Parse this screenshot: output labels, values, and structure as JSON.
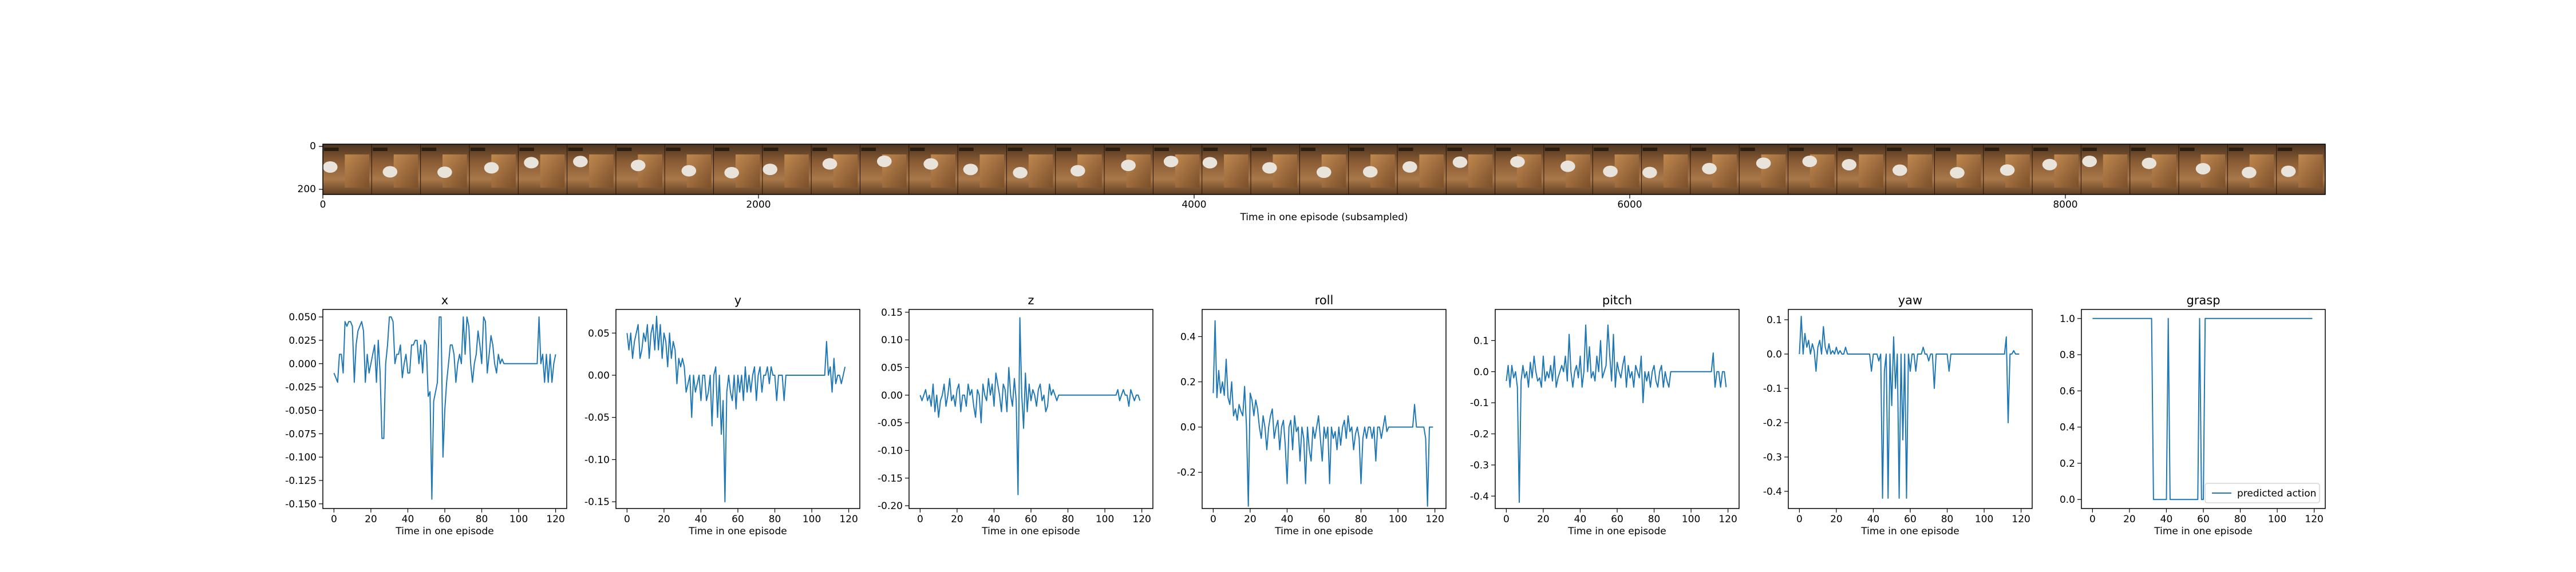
{
  "figure": {
    "strip": {
      "xlabel": "Time in one episode (subsampled)",
      "xticks": [
        "0",
        "2000",
        "4000",
        "6000",
        "8000"
      ],
      "yticks": [
        "0",
        "200"
      ],
      "frames": 41
    },
    "panels_xlabel": "Time in one episode",
    "legend_label": "predicted action",
    "series_color": "#1f77b4"
  },
  "chart_data": [
    {
      "type": "line",
      "title": "x",
      "xlabel": "Time in one episode",
      "xlim": [
        -6,
        126
      ],
      "ylim": [
        -0.155,
        0.058
      ],
      "xticks": [
        0,
        20,
        40,
        60,
        80,
        100,
        120
      ],
      "yticks": [
        0.05,
        0.025,
        0.0,
        -0.025,
        -0.05,
        -0.075,
        -0.1,
        -0.125,
        -0.15
      ],
      "ytick_labels": [
        "0.050",
        "0.025",
        "0.000",
        "-0.025",
        "-0.050",
        "-0.075",
        "-0.100",
        "-0.125",
        "-0.150"
      ],
      "y": [
        -0.01,
        -0.015,
        -0.02,
        0.01,
        0.01,
        -0.01,
        0.045,
        0.04,
        0.045,
        0.045,
        0.04,
        -0.02,
        0.02,
        0.035,
        0.04,
        0.045,
        0.035,
        -0.02,
        0.01,
        -0.01,
        0.0,
        0.01,
        0.02,
        -0.02,
        0.025,
        -0.01,
        -0.08,
        -0.08,
        0.0,
        0.02,
        0.05,
        0.05,
        0.045,
        0.0,
        0.01,
        0.01,
        0.02,
        -0.015,
        0.0,
        0.01,
        -0.01,
        -0.01,
        0.02,
        0.02,
        0.025,
        0.025,
        0.0,
        0.02,
        -0.01,
        0.025,
        0.02,
        -0.035,
        -0.03,
        -0.145,
        -0.04,
        -0.03,
        -0.02,
        0.05,
        0.05,
        -0.1,
        -0.05,
        -0.02,
        0.0,
        0.02,
        0.02,
        0.01,
        -0.02,
        0.0,
        0.01,
        0.0,
        0.05,
        0.01,
        0.05,
        0.04,
        0.0,
        -0.02,
        0.0,
        0.01,
        0.035,
        0.02,
        0.0,
        0.05,
        0.045,
        -0.01,
        0.01,
        0.03,
        0.02,
        0.0,
        -0.01,
        0.01,
        0.0,
        0.005,
        0.0,
        0.0,
        0.0,
        0.0,
        0.0,
        0.0,
        0.0,
        0.0,
        0.0,
        0.0,
        0.0,
        0.0,
        0.0,
        0.0,
        0.0,
        0.0,
        0.0,
        0.0,
        0.0,
        0.05,
        0.0,
        0.01,
        -0.02,
        0.01,
        -0.02,
        0.01,
        -0.02,
        0.0,
        0.01
      ]
    },
    {
      "type": "line",
      "title": "y",
      "xlabel": "Time in one episode",
      "xlim": [
        -6,
        126
      ],
      "ylim": [
        -0.158,
        0.078
      ],
      "xticks": [
        0,
        20,
        40,
        60,
        80,
        100,
        120
      ],
      "yticks": [
        0.05,
        0.0,
        -0.05,
        -0.1,
        -0.15
      ],
      "ytick_labels": [
        "0.05",
        "0.00",
        "-0.05",
        "-0.10",
        "-0.15"
      ],
      "y": [
        0.05,
        0.03,
        0.05,
        0.02,
        0.04,
        0.05,
        0.06,
        0.02,
        0.03,
        0.05,
        0.04,
        0.06,
        0.02,
        0.05,
        0.06,
        0.03,
        0.07,
        0.03,
        0.06,
        0.02,
        0.05,
        0.04,
        0.01,
        0.05,
        0.02,
        0.04,
        0.03,
        -0.01,
        0.02,
        0.01,
        0.02,
        0.01,
        -0.02,
        -0.01,
        0.0,
        -0.05,
        0.0,
        -0.02,
        -0.01,
        0.0,
        -0.03,
        0.0,
        0.0,
        -0.03,
        -0.02,
        0.0,
        -0.06,
        0.0,
        0.01,
        -0.05,
        0.0,
        -0.07,
        -0.03,
        -0.15,
        -0.02,
        0.0,
        -0.02,
        -0.03,
        0.0,
        -0.04,
        0.0,
        -0.02,
        0.0,
        -0.03,
        0.01,
        -0.02,
        0.0,
        -0.02,
        0.0,
        0.01,
        -0.03,
        0.0,
        0.01,
        -0.02,
        0.0,
        0.0,
        0.01,
        -0.01,
        0.01,
        0.0,
        0.0,
        -0.03,
        0.0,
        0.0,
        0.0,
        -0.03,
        0.0,
        0.0,
        0.0,
        0.0,
        0.0,
        0.0,
        0.0,
        0.0,
        0.0,
        0.0,
        0.0,
        0.0,
        0.0,
        0.0,
        0.0,
        0.0,
        0.0,
        0.0,
        0.0,
        0.0,
        0.0,
        0.0,
        0.04,
        0.0,
        0.01,
        -0.02,
        0.02,
        -0.01,
        0.0,
        0.0,
        -0.01,
        0.0,
        0.01
      ]
    },
    {
      "type": "line",
      "title": "z",
      "xlabel": "Time in one episode",
      "xlim": [
        -6,
        126
      ],
      "ylim": [
        -0.205,
        0.155
      ],
      "xticks": [
        0,
        20,
        40,
        60,
        80,
        100,
        120
      ],
      "yticks": [
        0.15,
        0.1,
        0.05,
        0.0,
        -0.05,
        -0.1,
        -0.15,
        -0.2
      ],
      "ytick_labels": [
        "0.15",
        "0.10",
        "0.05",
        "0.00",
        "-0.05",
        "-0.10",
        "-0.15",
        "-0.20"
      ],
      "y": [
        0.0,
        -0.01,
        0.0,
        0.01,
        -0.01,
        0.0,
        -0.02,
        0.02,
        -0.03,
        0.0,
        -0.04,
        -0.01,
        0.0,
        0.02,
        -0.02,
        0.0,
        0.03,
        -0.01,
        0.0,
        -0.02,
        0.01,
        0.02,
        -0.03,
        0.0,
        0.0,
        -0.02,
        0.02,
        0.0,
        0.01,
        -0.02,
        -0.04,
        0.01,
        0.0,
        -0.05,
        0.02,
        0.0,
        -0.01,
        0.03,
        0.0,
        0.02,
        -0.02,
        0.04,
        0.02,
        0.0,
        -0.03,
        0.02,
        0.01,
        -0.03,
        0.05,
        0.0,
        -0.02,
        0.03,
        -0.01,
        -0.18,
        0.14,
        0.0,
        -0.06,
        0.04,
        -0.03,
        0.02,
        -0.01,
        0.01,
        0.0,
        -0.02,
        0.01,
        0.02,
        -0.01,
        0.0,
        -0.03,
        -0.02,
        0.02,
        0.0,
        0.01,
        0.0,
        -0.01,
        0.0,
        0.0,
        0.0,
        0.0,
        0.0,
        0.0,
        0.0,
        0.0,
        0.0,
        0.0,
        0.0,
        0.0,
        0.0,
        0.0,
        0.0,
        0.0,
        0.0,
        0.0,
        0.0,
        0.0,
        0.0,
        0.0,
        0.0,
        0.0,
        0.0,
        0.0,
        0.0,
        0.0,
        0.0,
        0.0,
        0.0,
        0.0,
        0.01,
        -0.01,
        0.0,
        0.01,
        0.0,
        0.0,
        -0.02,
        0.01,
        0.0,
        -0.01,
        0.0,
        0.0,
        -0.01
      ]
    },
    {
      "type": "line",
      "title": "roll",
      "xlabel": "Time in one episode",
      "xlim": [
        -6,
        126
      ],
      "ylim": [
        -0.36,
        0.52
      ],
      "xticks": [
        0,
        20,
        40,
        60,
        80,
        100,
        120
      ],
      "yticks": [
        0.4,
        0.2,
        0.0,
        -0.2
      ],
      "ytick_labels": [
        "0.4",
        "0.2",
        "0.0",
        "-0.2"
      ],
      "y": [
        0.15,
        0.47,
        0.13,
        0.25,
        0.15,
        0.2,
        0.14,
        0.3,
        0.13,
        0.1,
        0.2,
        0.05,
        0.08,
        0.03,
        0.1,
        0.07,
        0.05,
        0.18,
        0.0,
        -0.35,
        0.15,
        0.12,
        0.05,
        0.12,
        0.08,
        0.0,
        -0.05,
        0.05,
        0.0,
        -0.1,
        0.0,
        0.05,
        0.08,
        -0.05,
        0.0,
        0.03,
        -0.1,
        0.0,
        0.03,
        -0.08,
        -0.25,
        0.0,
        0.03,
        -0.1,
        0.05,
        -0.02,
        0.0,
        -0.15,
        0.0,
        -0.05,
        -0.25,
        0.0,
        -0.1,
        -0.15,
        0.0,
        -0.05,
        0.0,
        0.05,
        -0.05,
        -0.15,
        0.0,
        -0.05,
        0.0,
        -0.25,
        0.0,
        -0.05,
        -0.02,
        -0.1,
        0.0,
        -0.08,
        0.0,
        0.03,
        -0.05,
        0.05,
        -0.02,
        0.0,
        -0.1,
        -0.03,
        0.0,
        -0.05,
        -0.25,
        -0.05,
        0.0,
        -0.05,
        0.0,
        0.0,
        -0.05,
        0.0,
        -0.15,
        0.0,
        0.0,
        -0.05,
        0.0,
        0.05,
        -0.02,
        0.0,
        0.0,
        0.0,
        0.0,
        0.0,
        0.0,
        0.0,
        0.0,
        0.0,
        0.0,
        0.0,
        0.0,
        0.0,
        0.0,
        0.1,
        0.0,
        0.0,
        0.0,
        0.0,
        0.0,
        -0.05,
        -0.35,
        0.0,
        0.0,
        0.0
      ]
    },
    {
      "type": "line",
      "title": "pitch",
      "xlabel": "Time in one episode",
      "xlim": [
        -6,
        126
      ],
      "ylim": [
        -0.44,
        0.2
      ],
      "xticks": [
        0,
        20,
        40,
        60,
        80,
        100,
        120
      ],
      "yticks": [
        0.1,
        0.0,
        -0.1,
        -0.2,
        -0.3,
        -0.4
      ],
      "ytick_labels": [
        "0.1",
        "0.0",
        "-0.1",
        "-0.2",
        "-0.3",
        "-0.4"
      ],
      "y": [
        -0.03,
        0.02,
        -0.05,
        0.02,
        -0.02,
        0.0,
        -0.05,
        -0.42,
        -0.03,
        0.02,
        -0.02,
        0.0,
        -0.05,
        0.03,
        -0.02,
        0.05,
        0.0,
        -0.03,
        -0.02,
        -0.05,
        0.05,
        -0.03,
        0.0,
        -0.02,
        0.02,
        -0.03,
        0.05,
        -0.05,
        -0.02,
        0.0,
        0.02,
        0.0,
        0.05,
        -0.03,
        0.12,
        0.0,
        -0.05,
        0.0,
        0.02,
        -0.02,
        0.05,
        -0.05,
        0.0,
        0.15,
        0.0,
        0.08,
        -0.02,
        0.0,
        -0.03,
        0.05,
        0.0,
        0.1,
        -0.02,
        0.0,
        0.02,
        0.15,
        0.05,
        -0.03,
        0.12,
        -0.05,
        0.03,
        0.0,
        -0.02,
        0.02,
        0.05,
        -0.05,
        0.02,
        -0.02,
        0.0,
        -0.05,
        0.02,
        0.0,
        -0.02,
        0.05,
        -0.1,
        0.0,
        -0.03,
        0.0,
        -0.05,
        0.0,
        0.02,
        -0.03,
        -0.05,
        0.0,
        0.02,
        -0.05,
        0.0,
        -0.03,
        -0.05,
        0.0,
        0.0,
        0.0,
        0.0,
        0.0,
        0.0,
        0.0,
        0.0,
        0.0,
        0.0,
        0.0,
        0.0,
        0.0,
        0.0,
        0.0,
        0.0,
        0.0,
        0.0,
        0.0,
        0.0,
        0.0,
        0.0,
        0.0,
        0.06,
        -0.05,
        0.0,
        0.0,
        -0.05,
        0.0,
        0.0,
        -0.05
      ]
    },
    {
      "type": "line",
      "title": "yaw",
      "xlabel": "Time in one episode",
      "xlim": [
        -6,
        126
      ],
      "ylim": [
        -0.45,
        0.13
      ],
      "xticks": [
        0,
        20,
        40,
        60,
        80,
        100,
        120
      ],
      "yticks": [
        0.1,
        0.0,
        -0.1,
        -0.2,
        -0.3,
        -0.4
      ],
      "ytick_labels": [
        "0.1",
        "0.0",
        "-0.1",
        "-0.2",
        "-0.3",
        "-0.4"
      ],
      "y": [
        0.0,
        0.11,
        0.0,
        0.06,
        0.02,
        0.04,
        0.0,
        0.03,
        0.01,
        -0.05,
        0.02,
        0.04,
        0.0,
        0.08,
        0.02,
        0.0,
        0.03,
        0.0,
        0.01,
        0.0,
        0.02,
        0.0,
        0.01,
        0.0,
        0.0,
        0.02,
        0.0,
        0.0,
        0.0,
        0.0,
        0.0,
        0.0,
        0.0,
        0.0,
        0.0,
        0.0,
        0.0,
        0.0,
        0.0,
        -0.05,
        0.0,
        0.0,
        0.0,
        -0.02,
        0.0,
        -0.42,
        -0.05,
        0.0,
        -0.42,
        0.0,
        -0.15,
        0.05,
        -0.1,
        0.0,
        -0.42,
        0.0,
        -0.25,
        0.0,
        -0.42,
        0.0,
        -0.05,
        0.0,
        0.0,
        -0.05,
        0.0,
        0.0,
        0.0,
        0.02,
        0.0,
        0.0,
        -0.02,
        0.0,
        0.0,
        -0.1,
        0.0,
        0.0,
        0.0,
        0.0,
        0.0,
        0.0,
        0.0,
        -0.05,
        0.0,
        0.0,
        0.0,
        0.0,
        0.0,
        0.0,
        0.0,
        0.0,
        0.0,
        0.0,
        0.0,
        0.0,
        0.0,
        0.0,
        0.0,
        0.0,
        0.0,
        0.0,
        0.0,
        0.0,
        0.0,
        0.0,
        0.0,
        0.0,
        0.0,
        0.0,
        0.0,
        0.0,
        0.0,
        0.0,
        0.05,
        -0.2,
        0.0,
        0.0,
        0.01,
        0.0,
        0.0,
        0.0
      ]
    },
    {
      "type": "line",
      "title": "grasp",
      "xlabel": "Time in one episode",
      "xlim": [
        -6,
        126
      ],
      "ylim": [
        -0.05,
        1.05
      ],
      "xticks": [
        0,
        20,
        40,
        60,
        80,
        100,
        120
      ],
      "yticks": [
        1.0,
        0.8,
        0.6,
        0.4,
        0.2,
        0.0
      ],
      "ytick_labels": [
        "1.0",
        "0.8",
        "0.6",
        "0.4",
        "0.2",
        "0.0"
      ],
      "legend": "predicted action",
      "legend_loc": "lower right",
      "y": [
        1,
        1,
        1,
        1,
        1,
        1,
        1,
        1,
        1,
        1,
        1,
        1,
        1,
        1,
        1,
        1,
        1,
        1,
        1,
        1,
        1,
        1,
        1,
        1,
        1,
        1,
        1,
        1,
        1,
        1,
        1,
        1,
        1,
        0,
        0,
        0,
        0,
        0,
        0,
        0,
        0,
        1,
        0,
        0,
        0,
        0,
        0,
        0,
        0,
        0,
        0,
        0,
        0,
        0,
        0,
        0,
        0,
        0,
        1,
        0,
        0,
        1,
        1,
        1,
        1,
        1,
        1,
        1,
        1,
        1,
        1,
        1,
        1,
        1,
        1,
        1,
        1,
        1,
        1,
        1,
        1,
        1,
        1,
        1,
        1,
        1,
        1,
        1,
        1,
        1,
        1,
        1,
        1,
        1,
        1,
        1,
        1,
        1,
        1,
        1,
        1,
        1,
        1,
        1,
        1,
        1,
        1,
        1,
        1,
        1,
        1,
        1,
        1,
        1,
        1,
        1,
        1,
        1,
        1,
        1
      ]
    }
  ]
}
